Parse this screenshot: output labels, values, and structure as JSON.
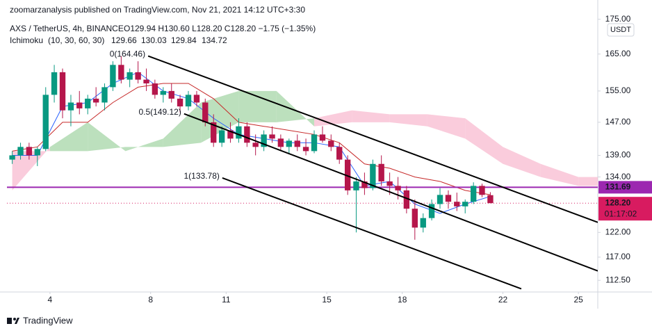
{
  "header": {
    "publisher": "zoomarzanalysis published on TradingView.com, Nov 21, 2021 14:12 UTC+3:30",
    "symbol": "AXS / TetherUS, 4h, BINANCE",
    "ohlc": "O129.94 H130.60 L128.20 C128.20 −1.75 (−1.35%)",
    "indicator": "Ichimoku",
    "indicator_params": "(10, 30, 60, 30)",
    "indicator_values": [
      {
        "text": "129.66",
        "color": "#2962ff"
      },
      {
        "text": "130.03",
        "color": "#c62828"
      },
      {
        "text": "129.84",
        "color": "#089981"
      },
      {
        "text": "134.72",
        "color": "#e0526f"
      }
    ],
    "currency": "USDT"
  },
  "chart_data": {
    "type": "candlestick",
    "x": [
      2.5,
      2.83,
      3.17,
      3.5,
      3.83,
      4.17,
      4.5,
      4.83,
      5.17,
      5.5,
      5.83,
      6.17,
      6.5,
      6.83,
      7.17,
      7.5,
      7.83,
      8.17,
      8.5,
      8.83,
      9.17,
      9.5,
      9.83,
      10.17,
      10.5,
      10.83,
      11.17,
      11.5,
      11.83,
      12.17,
      12.5,
      12.83,
      13.17,
      13.5,
      13.83,
      14.17,
      14.5,
      14.83,
      15.17,
      15.5,
      15.83,
      16.17,
      16.5,
      16.83,
      17.17,
      17.5,
      17.83,
      18.17,
      18.5,
      18.83,
      19.17,
      19.5,
      19.83,
      20.17,
      20.5,
      20.83,
      21.17,
      21.5
    ],
    "open": [
      138,
      139,
      141,
      139,
      140.5,
      154,
      160,
      150,
      152,
      150.5,
      153,
      152,
      156,
      162,
      158,
      160,
      158,
      157,
      154,
      155,
      153,
      151,
      154,
      152,
      147,
      142,
      145,
      143,
      146,
      142,
      141,
      144,
      143,
      141,
      142.5,
      141,
      140,
      144,
      142.5,
      141,
      138,
      131,
      133,
      131.5,
      137,
      133,
      132,
      131,
      127,
      123,
      125,
      128,
      130,
      128.5,
      127.5,
      128.5,
      132,
      129.94
    ],
    "high": [
      140,
      142,
      142,
      141,
      156,
      162,
      161,
      154,
      155,
      154,
      156,
      157,
      163,
      164.46,
      161,
      163,
      161,
      158,
      156,
      157,
      154,
      155,
      155,
      153,
      149,
      146,
      147,
      148,
      147,
      144,
      145,
      146,
      144,
      143,
      144,
      143,
      145,
      146,
      144,
      142,
      139,
      134,
      135,
      138,
      139,
      135,
      134,
      132,
      129,
      126,
      129,
      131.5,
      131,
      130.5,
      129,
      132.8,
      132.5,
      130.6
    ],
    "low": [
      137,
      138,
      138,
      136.5,
      140,
      152,
      148,
      146,
      149,
      149,
      151,
      150,
      155,
      157,
      156,
      157,
      155,
      153,
      152,
      152,
      149.5,
      150,
      151,
      146,
      141,
      141,
      142,
      142,
      141,
      139,
      140,
      142,
      140,
      139.5,
      140,
      139,
      139.5,
      142,
      140,
      137,
      130,
      122,
      130,
      131,
      132,
      130,
      129,
      126,
      120.5,
      122,
      124.5,
      127,
      127,
      126.5,
      126,
      128,
      129.5,
      128.2
    ],
    "close": [
      139,
      141,
      139,
      140.5,
      154,
      160,
      150,
      152,
      150.5,
      153,
      152,
      156,
      162,
      158,
      160,
      158,
      157,
      154,
      155,
      153,
      151,
      154,
      152,
      147,
      142,
      145,
      143,
      146,
      142,
      141,
      144,
      143,
      141,
      142.5,
      141,
      140,
      144,
      142.5,
      141,
      138,
      131,
      133,
      131.5,
      137,
      133,
      132,
      131,
      127,
      123,
      125,
      128,
      130,
      128.5,
      127.5,
      128.5,
      132,
      130,
      128.2
    ],
    "up_color": "#089981",
    "down_color": "#b5164b",
    "xlim": [
      2.29,
      25.77
    ],
    "xticks": [
      4,
      8,
      11,
      15,
      18,
      22,
      25
    ],
    "ylim": [
      110.3,
      176.6
    ],
    "log_scale": true,
    "yticks": [
      {
        "value": 112.5,
        "label": "112.50"
      },
      {
        "value": 117,
        "label": "117.00"
      },
      {
        "value": 122,
        "label": "122.00"
      },
      {
        "value": 134,
        "label": "134.00"
      },
      {
        "value": 139,
        "label": "139.00"
      },
      {
        "value": 147,
        "label": "147.00"
      },
      {
        "value": 155,
        "label": "155.00"
      },
      {
        "value": 165,
        "label": "165.00"
      },
      {
        "value": 175,
        "label": "175.00"
      }
    ],
    "ichimoku": {
      "line_x": [
        2.5,
        3.5,
        4.5,
        5.5,
        6.5,
        7.5,
        8.5,
        9.5,
        10.5,
        11.5,
        12.5,
        13.5,
        14.5,
        15.5,
        16.5,
        17.5,
        18.5,
        19.5,
        20.5,
        21.5
      ],
      "conversion": {
        "color": "#2962ff",
        "values": [
          139,
          139,
          151,
          152,
          157,
          160,
          155,
          153,
          148,
          144,
          143,
          142,
          142,
          141,
          132,
          133,
          128,
          126,
          128,
          129.66
        ]
      },
      "base": {
        "color": "#c62828",
        "values": [
          140,
          141,
          147,
          147,
          152,
          156,
          157,
          157,
          153,
          147,
          146,
          145,
          144,
          142,
          137,
          136,
          134,
          133,
          131,
          130.03
        ]
      },
      "cloud_x": [
        2.5,
        4,
        5.5,
        7,
        8.5,
        10,
        11.5,
        13,
        14.5,
        16,
        17.5,
        19,
        20.5,
        22,
        23.5,
        25,
        25.77
      ],
      "span_a": [
        131,
        141,
        147,
        140,
        143,
        152,
        155,
        155,
        146,
        147,
        147,
        146,
        143,
        137,
        134,
        132,
        132
      ],
      "span_b": [
        140,
        140,
        140,
        141,
        141,
        142,
        147,
        147,
        148,
        150,
        149,
        149,
        148,
        141,
        137,
        134,
        134
      ],
      "up_cloud_color": "#a5d6a7",
      "down_cloud_color": "#f8bbd0"
    },
    "trend_lines": [
      {
        "label": "0(164.46)",
        "x": [
          7.9,
          25.77
        ],
        "y": [
          164.46,
          124.1
        ]
      },
      {
        "label": "0.5(149.12)",
        "x": [
          9.33,
          25.77
        ],
        "y": [
          149.12,
          114.3
        ]
      },
      {
        "label": "1(133.78)",
        "x": [
          10.85,
          22.73
        ],
        "y": [
          133.78,
          110.9
        ]
      }
    ],
    "hline": {
      "value": 131.69,
      "color": "#9c27b0"
    },
    "last_price": {
      "value": 128.2,
      "label": "128.20",
      "countdown": "01:17:02",
      "color": "#d81b60"
    }
  },
  "footer": "TradingView"
}
